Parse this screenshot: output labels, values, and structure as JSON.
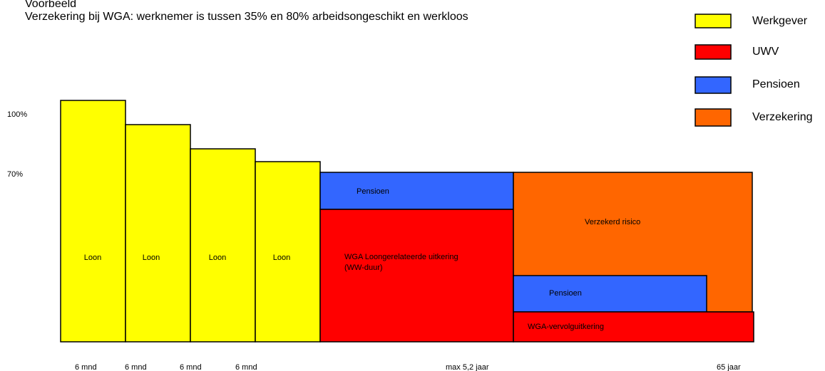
{
  "header": {
    "title": "Voorbeeld",
    "subtitle": "Verzekering bij WGA: werknemer is tussen 35% en 80% arbeidsongeschikt en werkloos"
  },
  "legend": [
    "Werkgever",
    "UWV",
    "Pensioen",
    "Verzekering"
  ],
  "y_labels": [
    "100%",
    "70%"
  ],
  "blocks": [
    "Loon",
    "Loon",
    "Loon",
    "Loon",
    "Pensioen",
    "WGA Loongerelateerde uitkering",
    "(WW-duur)",
    "Verzekerd risico",
    "Pensioen",
    "WGA-vervolguitkering"
  ],
  "x_labels": [
    "6 mnd",
    "6 mnd",
    "6 mnd",
    "6 mnd",
    "max 5,2 jaar",
    "65 jaar"
  ]
}
